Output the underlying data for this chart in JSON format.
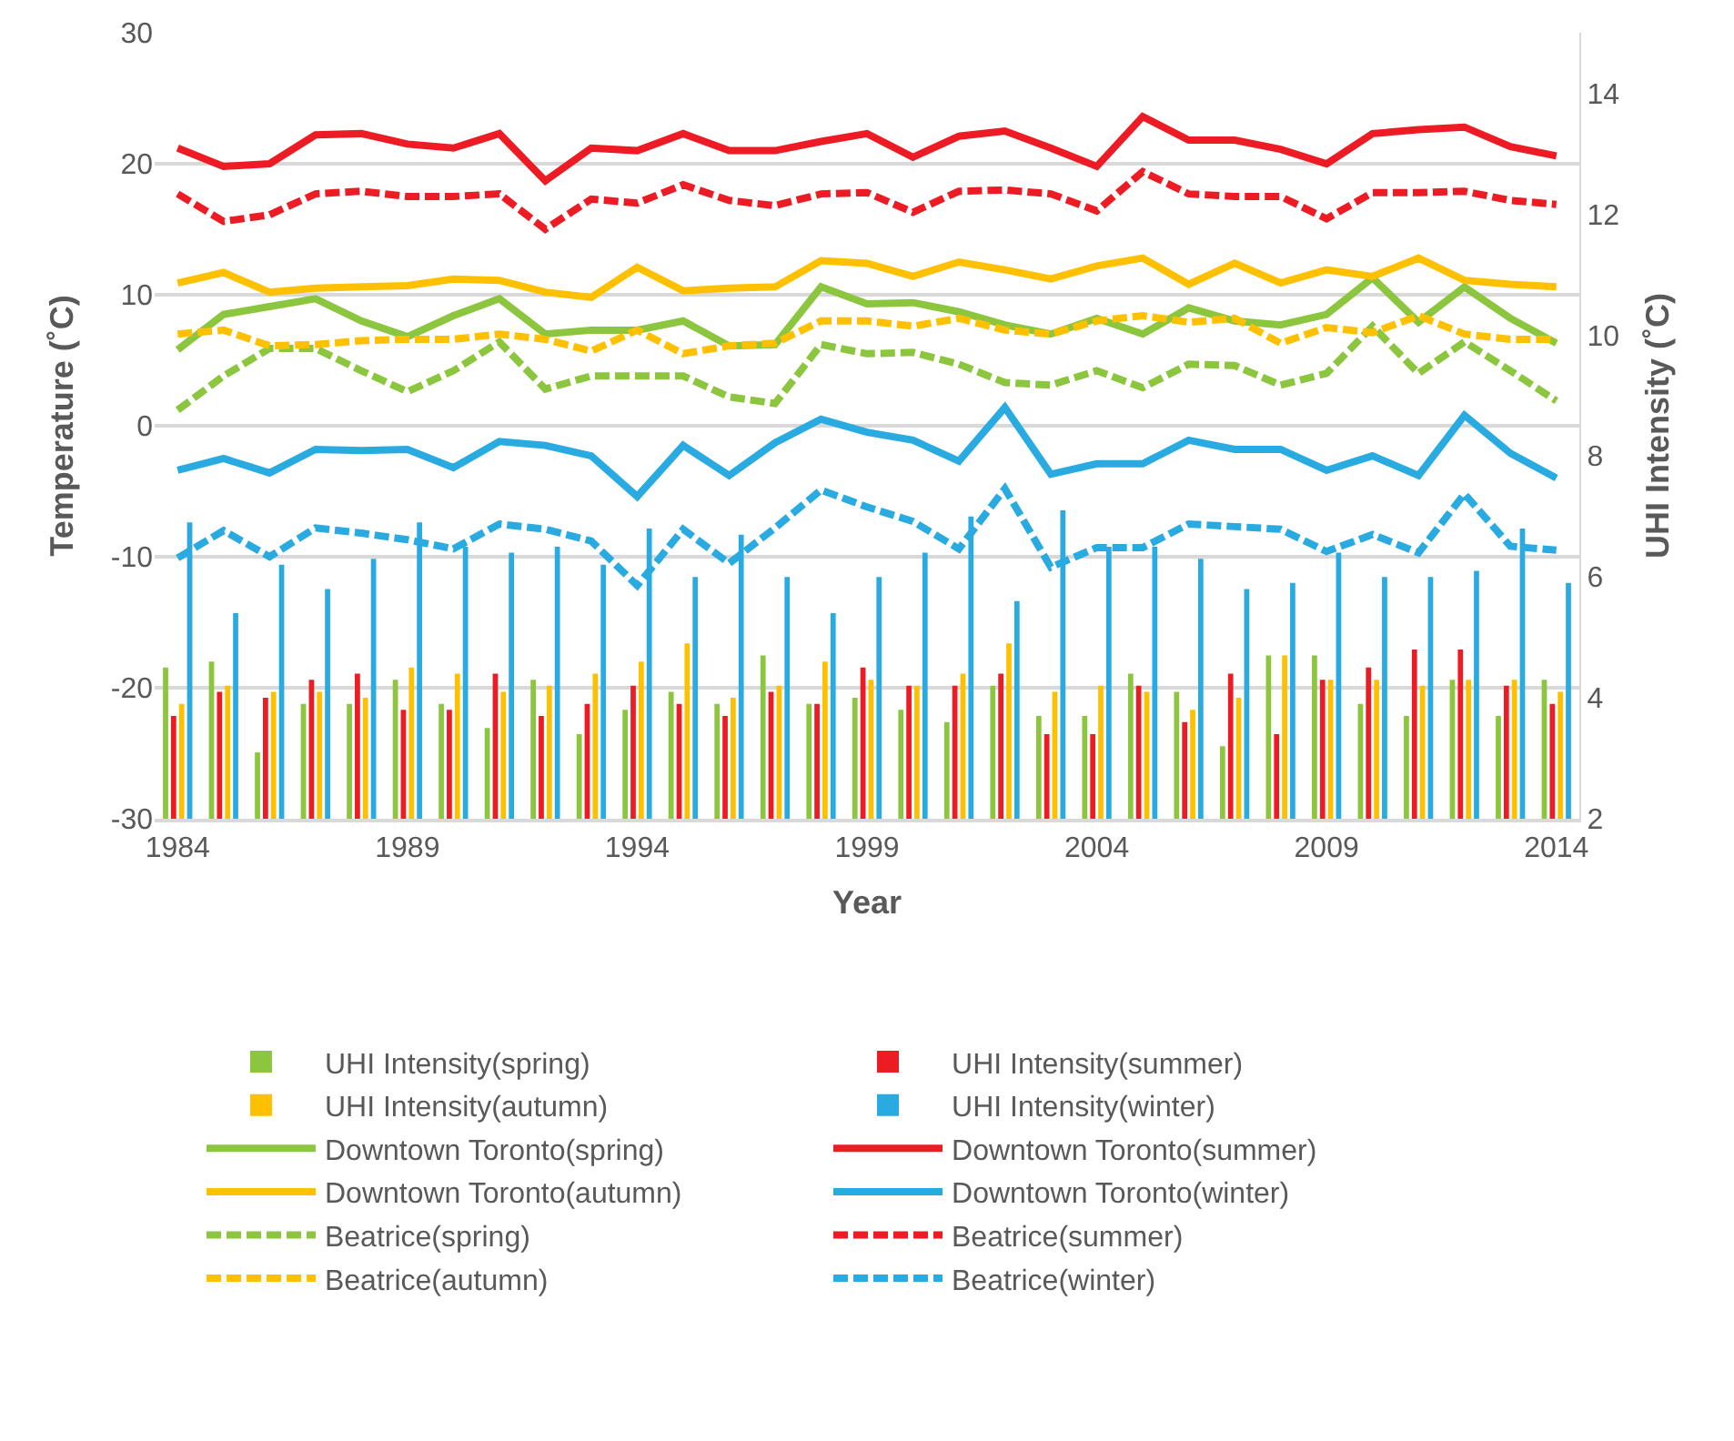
{
  "chart_data": {
    "type": "bar",
    "xlabel": "Year",
    "ylabel": "Temperature (˚C)",
    "y2label": "UHI Intensity (˚C)",
    "x": [
      1984,
      1985,
      1986,
      1987,
      1988,
      1989,
      1990,
      1991,
      1992,
      1993,
      1994,
      1995,
      1996,
      1997,
      1998,
      1999,
      2000,
      2001,
      2002,
      2003,
      2004,
      2005,
      2006,
      2007,
      2008,
      2009,
      2010,
      2011,
      2012,
      2013,
      2014
    ],
    "xlim": [
      1983.5,
      2014.5
    ],
    "xticks": [
      1984,
      1989,
      1994,
      1999,
      2004,
      2009,
      2014
    ],
    "ylim": [
      -30,
      30
    ],
    "yticks": [
      -30,
      -20,
      -10,
      0,
      10,
      20,
      30
    ],
    "y2lim": [
      2,
      15
    ],
    "y2ticks": [
      2,
      4,
      6,
      8,
      10,
      12,
      14
    ],
    "grid": "y",
    "legend": "bottom",
    "series": [
      {
        "name": "UHI Intensity(spring)",
        "axis": "y2",
        "color": "#8cc63f",
        "values": [
          4.5,
          4.6,
          3.1,
          3.9,
          3.9,
          4.3,
          3.9,
          3.5,
          4.3,
          3.4,
          3.8,
          4.1,
          3.9,
          4.7,
          3.9,
          4.0,
          3.8,
          3.6,
          4.2,
          3.7,
          3.7,
          4.4,
          4.1,
          3.2,
          4.7,
          4.7,
          3.9,
          3.7,
          4.3,
          3.7,
          4.3
        ]
      },
      {
        "name": "UHI Intensity(summer)",
        "axis": "y2",
        "color": "#ed1c24",
        "values": [
          3.7,
          4.1,
          4.0,
          4.3,
          4.4,
          3.8,
          3.8,
          4.4,
          3.7,
          3.9,
          4.2,
          3.9,
          3.7,
          4.1,
          3.9,
          4.5,
          4.2,
          4.2,
          4.4,
          3.4,
          3.4,
          4.2,
          3.6,
          4.4,
          3.4,
          4.3,
          4.5,
          4.8,
          4.8,
          4.2,
          3.9
        ]
      },
      {
        "name": "UHI Intensity(autumn)",
        "axis": "y2",
        "color": "#ffc000",
        "values": [
          3.9,
          4.2,
          4.1,
          4.1,
          4.0,
          4.5,
          4.4,
          4.1,
          4.2,
          4.4,
          4.6,
          4.9,
          4.0,
          4.2,
          4.6,
          4.3,
          4.2,
          4.4,
          4.9,
          4.1,
          4.2,
          4.1,
          3.8,
          4.0,
          4.7,
          4.3,
          4.3,
          4.2,
          4.3,
          4.3,
          4.1
        ]
      },
      {
        "name": "UHI Intensity(winter)",
        "axis": "y2",
        "color": "#29abe2",
        "values": [
          6.9,
          5.4,
          6.2,
          5.8,
          6.3,
          6.9,
          6.5,
          6.4,
          6.5,
          6.2,
          6.8,
          6.0,
          6.7,
          6.0,
          5.4,
          6.0,
          6.4,
          7.0,
          5.6,
          7.1,
          6.5,
          6.5,
          6.3,
          5.8,
          5.9,
          6.4,
          6.0,
          6.0,
          6.1,
          6.8,
          5.9
        ]
      },
      {
        "name": "Downtown Toronto(spring)",
        "type": "line",
        "axis": "y",
        "line_style": "solid",
        "color": "#8cc63f",
        "values": [
          5.8,
          8.5,
          9.1,
          9.7,
          8.0,
          6.8,
          8.4,
          9.7,
          7.0,
          7.3,
          7.3,
          8.0,
          6.1,
          6.2,
          10.6,
          9.3,
          9.4,
          8.7,
          7.7,
          7.0,
          8.2,
          7.0,
          9.0,
          8.0,
          7.7,
          8.5,
          11.3,
          7.9,
          10.6,
          8.2,
          6.3
        ]
      },
      {
        "name": "Downtown Toronto(summer)",
        "type": "line",
        "axis": "y",
        "line_style": "solid",
        "color": "#ed1c24",
        "values": [
          21.2,
          19.8,
          20.0,
          22.2,
          22.3,
          21.5,
          21.2,
          22.3,
          18.7,
          21.2,
          21.0,
          22.3,
          21.0,
          21.0,
          21.7,
          22.3,
          20.5,
          22.1,
          22.5,
          21.2,
          19.8,
          23.6,
          21.8,
          21.8,
          21.1,
          20.0,
          22.3,
          22.6,
          22.8,
          21.3,
          20.6
        ]
      },
      {
        "name": "Downtown Toronto(autumn)",
        "type": "line",
        "axis": "y",
        "line_style": "solid",
        "color": "#ffc000",
        "values": [
          10.9,
          11.7,
          10.2,
          10.5,
          10.6,
          10.7,
          11.2,
          11.1,
          10.2,
          9.8,
          12.1,
          10.3,
          10.5,
          10.6,
          12.6,
          12.4,
          11.4,
          12.5,
          11.9,
          11.2,
          12.2,
          12.8,
          10.8,
          12.4,
          10.9,
          11.9,
          11.4,
          12.8,
          11.1,
          10.8,
          10.6
        ]
      },
      {
        "name": "Downtown Toronto(winter)",
        "type": "line",
        "axis": "y",
        "line_style": "solid",
        "color": "#29abe2",
        "values": [
          -3.4,
          -2.5,
          -3.6,
          -1.8,
          -1.9,
          -1.8,
          -3.2,
          -1.2,
          -1.5,
          -2.3,
          -5.4,
          -1.5,
          -3.8,
          -1.3,
          0.5,
          -0.5,
          -1.1,
          -2.7,
          1.4,
          -3.7,
          -2.9,
          -2.9,
          -1.1,
          -1.8,
          -1.8,
          -3.4,
          -2.3,
          -3.8,
          0.8,
          -2.1,
          -4.0
        ]
      },
      {
        "name": "Beatrice(spring)",
        "type": "line",
        "axis": "y",
        "line_style": "dashed",
        "color": "#8cc63f",
        "values": [
          1.2,
          3.8,
          5.9,
          5.9,
          4.2,
          2.6,
          4.2,
          6.4,
          2.8,
          3.8,
          3.8,
          3.8,
          2.2,
          1.7,
          6.2,
          5.5,
          5.6,
          4.7,
          3.3,
          3.1,
          4.2,
          2.9,
          4.7,
          4.6,
          3.1,
          4.0,
          7.6,
          4.0,
          6.4,
          4.2,
          1.9
        ]
      },
      {
        "name": "Beatrice(summer)",
        "type": "line",
        "axis": "y",
        "line_style": "dashed",
        "color": "#ed1c24",
        "values": [
          17.7,
          15.6,
          16.1,
          17.7,
          17.9,
          17.5,
          17.5,
          17.7,
          15.0,
          17.3,
          17.0,
          18.4,
          17.2,
          16.8,
          17.7,
          17.8,
          16.3,
          17.9,
          18.0,
          17.7,
          16.4,
          19.4,
          17.7,
          17.5,
          17.5,
          15.8,
          17.8,
          17.8,
          17.9,
          17.2,
          16.9
        ]
      },
      {
        "name": "Beatrice(autumn)",
        "type": "line",
        "axis": "y",
        "line_style": "dashed",
        "color": "#ffc000",
        "values": [
          7.0,
          7.3,
          6.1,
          6.2,
          6.5,
          6.6,
          6.6,
          7.0,
          6.6,
          5.7,
          7.3,
          5.5,
          6.1,
          6.3,
          8.0,
          8.0,
          7.6,
          8.2,
          7.3,
          7.0,
          8.0,
          8.4,
          7.9,
          8.2,
          6.3,
          7.5,
          7.1,
          8.4,
          7.0,
          6.6,
          6.6
        ]
      },
      {
        "name": "Beatrice(winter)",
        "type": "line",
        "axis": "y",
        "line_style": "dashed",
        "color": "#29abe2",
        "values": [
          -10.1,
          -8.0,
          -10.0,
          -7.8,
          -8.2,
          -8.7,
          -9.4,
          -7.5,
          -7.9,
          -8.8,
          -12.2,
          -7.9,
          -10.5,
          -7.8,
          -4.9,
          -6.2,
          -7.3,
          -9.4,
          -4.8,
          -10.8,
          -9.3,
          -9.3,
          -7.5,
          -7.7,
          -7.9,
          -9.6,
          -8.3,
          -9.7,
          -5.2,
          -9.2,
          -9.5
        ]
      }
    ]
  }
}
